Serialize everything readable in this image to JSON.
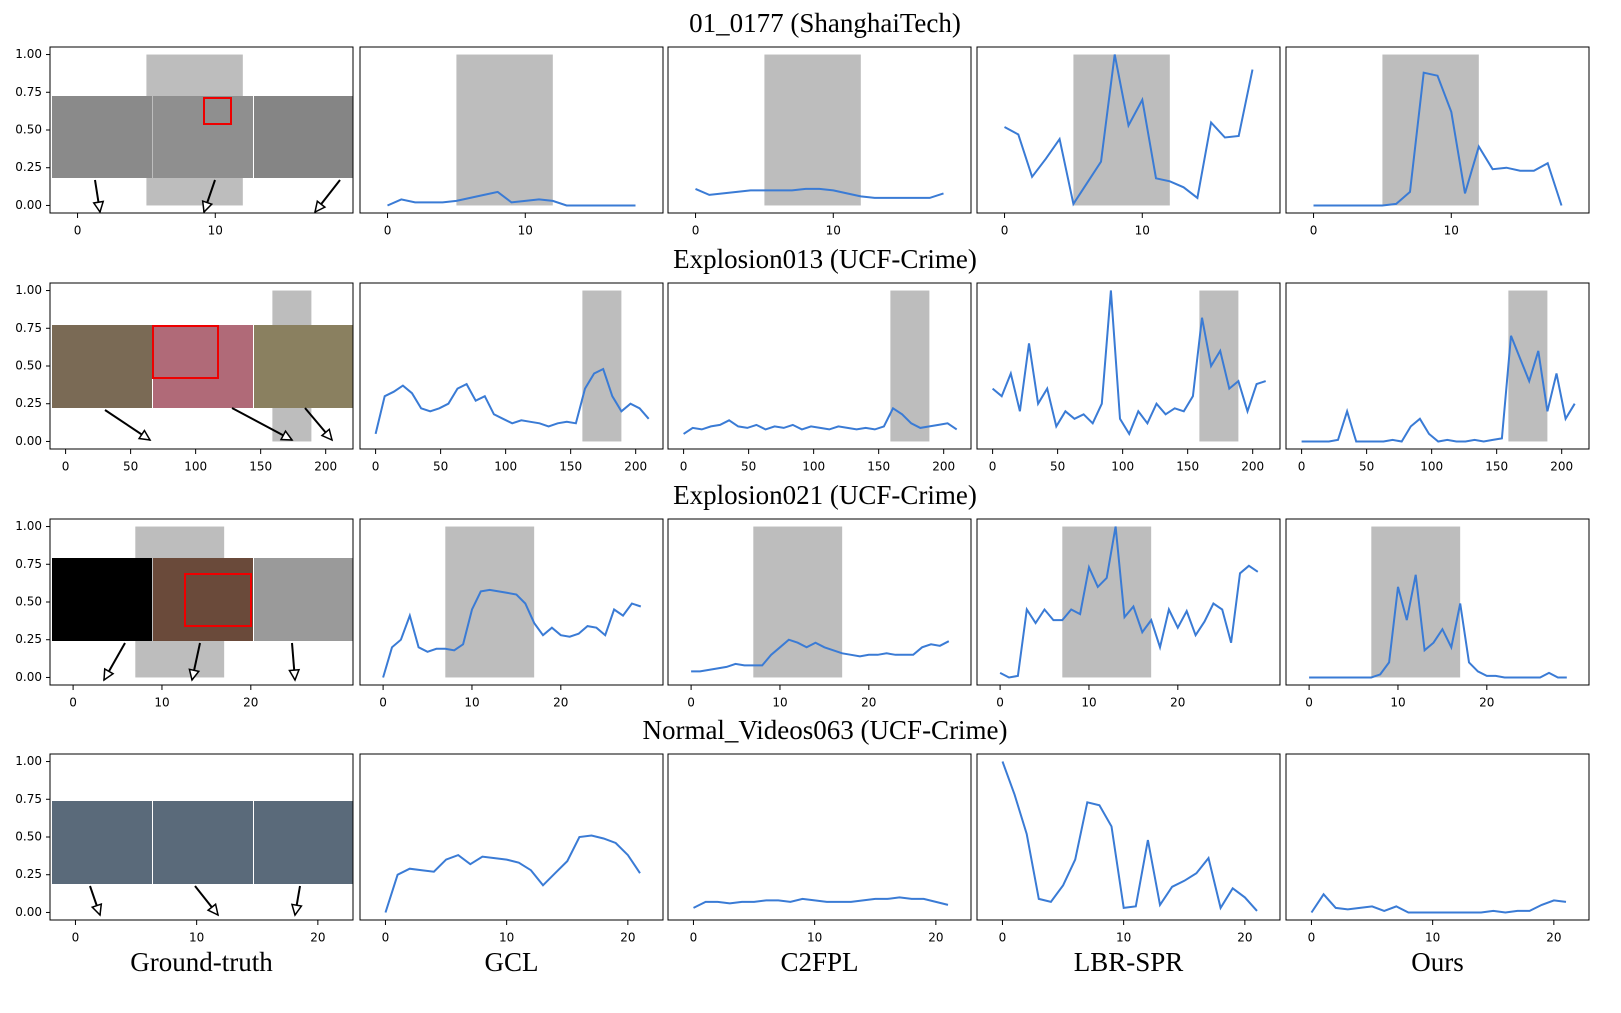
{
  "columns": [
    "Ground-truth",
    "GCL",
    "C2FPL",
    "LBR-SPR",
    "Ours"
  ],
  "chart_data": [
    {
      "type": "line",
      "title": "01_0177 (ShanghaiTech)",
      "x": [
        0,
        1,
        2,
        3,
        4,
        5,
        6,
        7,
        8,
        9,
        10,
        11,
        12,
        13,
        14,
        15,
        16,
        17,
        18
      ],
      "xlim": [
        -2,
        20
      ],
      "xticks": [
        0,
        10
      ],
      "ylim": [
        -0.05,
        1.05
      ],
      "yticks": [
        {
          "value": 0,
          "label": "0.00"
        },
        {
          "value": 0.25,
          "label": "0.25"
        },
        {
          "value": 0.5,
          "label": "0.50"
        },
        {
          "value": 0.75,
          "label": "0.75"
        },
        {
          "value": 1,
          "label": "1.00"
        }
      ],
      "shade": [
        5,
        12
      ],
      "series": [
        {
          "color": "#3a7bd5",
          "values": [
            0.0,
            0.04,
            0.02,
            0.02,
            0.02,
            0.03,
            0.05,
            0.07,
            0.09,
            0.02,
            0.03,
            0.04,
            0.03,
            0.0,
            0.0,
            0.0,
            0.0,
            0.0,
            0.0
          ]
        },
        {
          "color": "#3a7bd5",
          "values": [
            0.11,
            0.07,
            0.08,
            0.09,
            0.1,
            0.1,
            0.1,
            0.1,
            0.11,
            0.11,
            0.1,
            0.08,
            0.06,
            0.05,
            0.05,
            0.05,
            0.05,
            0.05,
            0.08
          ]
        },
        {
          "color": "#3a7bd5",
          "values": [
            0.52,
            0.47,
            0.19,
            0.31,
            0.44,
            0.01,
            0.15,
            0.29,
            1.0,
            0.53,
            0.7,
            0.18,
            0.16,
            0.12,
            0.05,
            0.55,
            0.45,
            0.46,
            0.9
          ]
        },
        {
          "color": "#3a7bd5",
          "values": [
            0,
            0,
            0,
            0,
            0,
            0,
            0.01,
            0.09,
            0.88,
            0.86,
            0.62,
            0.08,
            0.39,
            0.24,
            0.25,
            0.23,
            0.23,
            0.28,
            0.0
          ]
        }
      ]
    },
    {
      "type": "line",
      "title": "Explosion013 (UCF-Crime)",
      "x": [
        0,
        7,
        14,
        21,
        28,
        35,
        42,
        49,
        56,
        63,
        70,
        77,
        84,
        91,
        98,
        105,
        112,
        119,
        126,
        133,
        140,
        147,
        154,
        161,
        168,
        175,
        182,
        189,
        196,
        203,
        210
      ],
      "xlim": [
        -12,
        221
      ],
      "xticks": [
        0,
        50,
        100,
        150,
        200
      ],
      "ylim": [
        -0.05,
        1.05
      ],
      "yticks": [
        {
          "value": 0,
          "label": "0.00"
        },
        {
          "value": 0.25,
          "label": "0.25"
        },
        {
          "value": 0.5,
          "label": "0.50"
        },
        {
          "value": 0.75,
          "label": "0.75"
        },
        {
          "value": 1,
          "label": "1.00"
        }
      ],
      "shade": [
        159,
        189
      ],
      "series": [
        {
          "color": "#3a7bd5",
          "values": [
            0.05,
            0.3,
            0.33,
            0.37,
            0.32,
            0.22,
            0.2,
            0.22,
            0.25,
            0.35,
            0.38,
            0.27,
            0.3,
            0.18,
            0.15,
            0.12,
            0.14,
            0.13,
            0.12,
            0.1,
            0.12,
            0.13,
            0.12,
            0.35,
            0.45,
            0.48,
            0.3,
            0.2,
            0.25,
            0.22,
            0.15
          ]
        },
        {
          "color": "#3a7bd5",
          "values": [
            0.05,
            0.09,
            0.08,
            0.1,
            0.11,
            0.14,
            0.1,
            0.09,
            0.11,
            0.08,
            0.1,
            0.09,
            0.11,
            0.08,
            0.1,
            0.09,
            0.08,
            0.1,
            0.09,
            0.08,
            0.09,
            0.08,
            0.1,
            0.22,
            0.18,
            0.12,
            0.09,
            0.1,
            0.11,
            0.12,
            0.08
          ]
        },
        {
          "color": "#3a7bd5",
          "values": [
            0.35,
            0.3,
            0.45,
            0.2,
            0.65,
            0.25,
            0.35,
            0.1,
            0.2,
            0.15,
            0.18,
            0.12,
            0.25,
            1.0,
            0.15,
            0.05,
            0.2,
            0.12,
            0.25,
            0.18,
            0.22,
            0.2,
            0.3,
            0.82,
            0.5,
            0.6,
            0.35,
            0.4,
            0.2,
            0.38,
            0.4
          ]
        },
        {
          "color": "#3a7bd5",
          "values": [
            0,
            0,
            0,
            0,
            0.01,
            0.2,
            0,
            0,
            0,
            0,
            0.01,
            0,
            0.1,
            0.15,
            0.05,
            0,
            0.01,
            0,
            0,
            0.01,
            0,
            0.01,
            0.02,
            0.7,
            0.55,
            0.4,
            0.6,
            0.2,
            0.45,
            0.15,
            0.25
          ]
        }
      ]
    },
    {
      "type": "line",
      "title": "Explosion021 (UCF-Crime)",
      "x": [
        0,
        1,
        2,
        3,
        4,
        5,
        6,
        7,
        8,
        9,
        10,
        11,
        12,
        13,
        14,
        15,
        16,
        17,
        18,
        19,
        20,
        21,
        22,
        23,
        24,
        25,
        26,
        27,
        28,
        29
      ],
      "xlim": [
        -2.6,
        31.5
      ],
      "xticks": [
        0,
        10,
        20
      ],
      "ylim": [
        -0.05,
        1.05
      ],
      "yticks": [
        {
          "value": 0,
          "label": "0.00"
        },
        {
          "value": 0.25,
          "label": "0.25"
        },
        {
          "value": 0.5,
          "label": "0.50"
        },
        {
          "value": 0.75,
          "label": "0.75"
        },
        {
          "value": 1,
          "label": "1.00"
        }
      ],
      "shade": [
        7,
        17
      ],
      "series": [
        {
          "color": "#3a7bd5",
          "values": [
            0.0,
            0.2,
            0.25,
            0.41,
            0.2,
            0.17,
            0.19,
            0.19,
            0.18,
            0.22,
            0.45,
            0.57,
            0.58,
            0.57,
            0.56,
            0.55,
            0.49,
            0.36,
            0.28,
            0.33,
            0.28,
            0.27,
            0.29,
            0.34,
            0.33,
            0.28,
            0.45,
            0.41,
            0.49,
            0.47
          ]
        },
        {
          "color": "#3a7bd5",
          "values": [
            0.04,
            0.04,
            0.05,
            0.06,
            0.07,
            0.09,
            0.08,
            0.08,
            0.08,
            0.15,
            0.2,
            0.25,
            0.23,
            0.2,
            0.23,
            0.2,
            0.18,
            0.16,
            0.15,
            0.14,
            0.15,
            0.15,
            0.16,
            0.15,
            0.15,
            0.15,
            0.2,
            0.22,
            0.21,
            0.24
          ]
        },
        {
          "color": "#3a7bd5",
          "values": [
            0.03,
            0.0,
            0.01,
            0.45,
            0.36,
            0.45,
            0.38,
            0.38,
            0.45,
            0.42,
            0.73,
            0.6,
            0.66,
            1.0,
            0.4,
            0.47,
            0.3,
            0.38,
            0.2,
            0.45,
            0.33,
            0.44,
            0.28,
            0.37,
            0.49,
            0.45,
            0.23,
            0.69,
            0.74,
            0.7
          ]
        },
        {
          "color": "#3a7bd5",
          "values": [
            0,
            0,
            0,
            0,
            0,
            0,
            0,
            0,
            0.02,
            0.1,
            0.6,
            0.38,
            0.68,
            0.18,
            0.23,
            0.32,
            0.2,
            0.49,
            0.1,
            0.04,
            0.01,
            0.01,
            0,
            0,
            0,
            0,
            0,
            0.03,
            0,
            0
          ]
        }
      ]
    },
    {
      "type": "line",
      "title": "Normal_Videos063 (UCF-Crime)",
      "x": [
        0,
        1,
        2,
        3,
        4,
        5,
        6,
        7,
        8,
        9,
        10,
        11,
        12,
        13,
        14,
        15,
        16,
        17,
        18,
        19,
        20,
        21
      ],
      "xlim": [
        -2.1,
        22.9
      ],
      "xticks": [
        0,
        10,
        20
      ],
      "ylim": [
        -0.05,
        1.05
      ],
      "yticks": [
        {
          "value": 0,
          "label": "0.00"
        },
        {
          "value": 0.25,
          "label": "0.25"
        },
        {
          "value": 0.5,
          "label": "0.50"
        },
        {
          "value": 0.75,
          "label": "0.75"
        },
        {
          "value": 1,
          "label": "1.00"
        }
      ],
      "series": [
        {
          "color": "#3a7bd5",
          "values": [
            0.0,
            0.25,
            0.29,
            0.28,
            0.27,
            0.35,
            0.38,
            0.32,
            0.37,
            0.36,
            0.35,
            0.33,
            0.28,
            0.18,
            0.26,
            0.34,
            0.5,
            0.51,
            0.49,
            0.46,
            0.38,
            0.26
          ]
        },
        {
          "color": "#3a7bd5",
          "values": [
            0.03,
            0.07,
            0.07,
            0.06,
            0.07,
            0.07,
            0.08,
            0.08,
            0.07,
            0.09,
            0.08,
            0.07,
            0.07,
            0.07,
            0.08,
            0.09,
            0.09,
            0.1,
            0.09,
            0.09,
            0.07,
            0.05
          ]
        },
        {
          "color": "#3a7bd5",
          "values": [
            1.0,
            0.78,
            0.52,
            0.09,
            0.07,
            0.18,
            0.35,
            0.73,
            0.71,
            0.57,
            0.03,
            0.04,
            0.48,
            0.05,
            0.17,
            0.21,
            0.26,
            0.36,
            0.03,
            0.16,
            0.1,
            0.01
          ]
        },
        {
          "color": "#3a7bd5",
          "values": [
            0.0,
            0.12,
            0.03,
            0.02,
            0.03,
            0.04,
            0.01,
            0.04,
            0.0,
            0.0,
            0.0,
            0.0,
            0.0,
            0.0,
            0.0,
            0.01,
            0.0,
            0.01,
            0.01,
            0.05,
            0.08,
            0.07
          ]
        }
      ]
    }
  ]
}
